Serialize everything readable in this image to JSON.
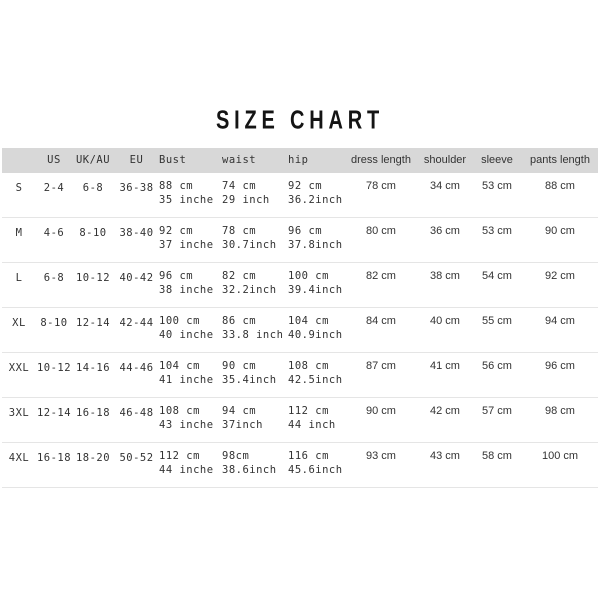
{
  "title": "SIZE CHART",
  "colors": {
    "header_background": "#d8d8d8",
    "row_divider": "#e5e5e5",
    "body_text": "#333333",
    "title_text": "#141414"
  },
  "table": {
    "headers": {
      "size": "",
      "us": "US",
      "uk_au": "UK/AU",
      "eu": "EU",
      "bust": "Bust",
      "waist": "waist",
      "hip": "hip",
      "dress_length": "dress length",
      "shoulder": "shoulder",
      "sleeve": "sleeve",
      "pants_length": "pants length"
    },
    "rows": [
      {
        "size": "S",
        "us": "2-4",
        "uk_au": "6-8",
        "eu": "36-38",
        "bust_cm": "88 cm",
        "bust_inch": "35 inche",
        "waist_cm": "74 cm",
        "waist_inch": "29 inch",
        "hip_cm": "92 cm",
        "hip_inch": "36.2inch",
        "dress_length": "78 cm",
        "shoulder": "34 cm",
        "sleeve": "53 cm",
        "pants_length": "88 cm"
      },
      {
        "size": "M",
        "us": "4-6",
        "uk_au": "8-10",
        "eu": "38-40",
        "bust_cm": "92 cm",
        "bust_inch": "37 inche",
        "waist_cm": "78 cm",
        "waist_inch": "30.7inch",
        "hip_cm": "96 cm",
        "hip_inch": "37.8inch",
        "dress_length": "80 cm",
        "shoulder": "36 cm",
        "sleeve": "53 cm",
        "pants_length": "90 cm"
      },
      {
        "size": "L",
        "us": "6-8",
        "uk_au": "10-12",
        "eu": "40-42",
        "bust_cm": "96 cm",
        "bust_inch": "38 inche",
        "waist_cm": "82 cm",
        "waist_inch": "32.2inch",
        "hip_cm": "100 cm",
        "hip_inch": "39.4inch",
        "dress_length": "82 cm",
        "shoulder": "38 cm",
        "sleeve": "54 cm",
        "pants_length": "92 cm"
      },
      {
        "size": "XL",
        "us": "8-10",
        "uk_au": "12-14",
        "eu": "42-44",
        "bust_cm": "100 cm",
        "bust_inch": "40 inche",
        "waist_cm": "86 cm",
        "waist_inch": "33.8 inch",
        "hip_cm": "104 cm",
        "hip_inch": "40.9inch",
        "dress_length": "84 cm",
        "shoulder": "40 cm",
        "sleeve": "55 cm",
        "pants_length": "94 cm"
      },
      {
        "size": "XXL",
        "us": "10-12",
        "uk_au": "14-16",
        "eu": "44-46",
        "bust_cm": "104 cm",
        "bust_inch": "41 inche",
        "waist_cm": "90 cm",
        "waist_inch": "35.4inch",
        "hip_cm": "108 cm",
        "hip_inch": "42.5inch",
        "dress_length": "87 cm",
        "shoulder": "41 cm",
        "sleeve": "56 cm",
        "pants_length": "96 cm"
      },
      {
        "size": "3XL",
        "us": "12-14",
        "uk_au": "16-18",
        "eu": "46-48",
        "bust_cm": "108 cm",
        "bust_inch": "43 inche",
        "waist_cm": "94 cm",
        "waist_inch": "37inch",
        "hip_cm": "112 cm",
        "hip_inch": "44 inch",
        "dress_length": "90 cm",
        "shoulder": "42 cm",
        "sleeve": "57 cm",
        "pants_length": "98 cm"
      },
      {
        "size": "4XL",
        "us": "16-18",
        "uk_au": "18-20",
        "eu": "50-52",
        "bust_cm": "112 cm",
        "bust_inch": "44 inche",
        "waist_cm": "98cm",
        "waist_inch": "38.6inch",
        "hip_cm": "116 cm",
        "hip_inch": "45.6inch",
        "dress_length": "93 cm",
        "shoulder": "43 cm",
        "sleeve": "58 cm",
        "pants_length": "100 cm"
      }
    ]
  },
  "chart_data": {
    "type": "table",
    "title": "SIZE CHART",
    "columns": [
      "Size",
      "US",
      "UK/AU",
      "EU",
      "Bust",
      "waist",
      "hip",
      "dress length",
      "shoulder",
      "sleeve",
      "pants length"
    ],
    "rows": [
      [
        "S",
        "2-4",
        "6-8",
        "36-38",
        "88 cm\n35 inche",
        "74 cm\n29 inch",
        "92 cm\n36.2inch",
        "78 cm",
        "34 cm",
        "53 cm",
        "88 cm"
      ],
      [
        "M",
        "4-6",
        "8-10",
        "38-40",
        "92 cm\n37 inche",
        "78 cm\n30.7inch",
        "96 cm\n37.8inch",
        "80 cm",
        "36 cm",
        "53 cm",
        "90 cm"
      ],
      [
        "L",
        "6-8",
        "10-12",
        "40-42",
        "96 cm\n38 inche",
        "82 cm\n32.2inch",
        "100 cm\n39.4inch",
        "82 cm",
        "38 cm",
        "54 cm",
        "92 cm"
      ],
      [
        "XL",
        "8-10",
        "12-14",
        "42-44",
        "100 cm\n40 inche",
        "86 cm\n33.8 inch",
        "104 cm\n40.9inch",
        "84 cm",
        "40 cm",
        "55 cm",
        "94 cm"
      ],
      [
        "XXL",
        "10-12",
        "14-16",
        "44-46",
        "104 cm\n41 inche",
        "90 cm\n35.4inch",
        "108 cm\n42.5inch",
        "87 cm",
        "41 cm",
        "56 cm",
        "96 cm"
      ],
      [
        "3XL",
        "12-14",
        "16-18",
        "46-48",
        "108 cm\n43 inche",
        "94 cm\n37inch",
        "112 cm\n44 inch",
        "90 cm",
        "42 cm",
        "57 cm",
        "98 cm"
      ],
      [
        "4XL",
        "16-18",
        "18-20",
        "50-52",
        "112 cm\n44 inche",
        "98cm\n38.6inch",
        "116 cm\n45.6inch",
        "93 cm",
        "43 cm",
        "58 cm",
        "100 cm"
      ]
    ]
  }
}
